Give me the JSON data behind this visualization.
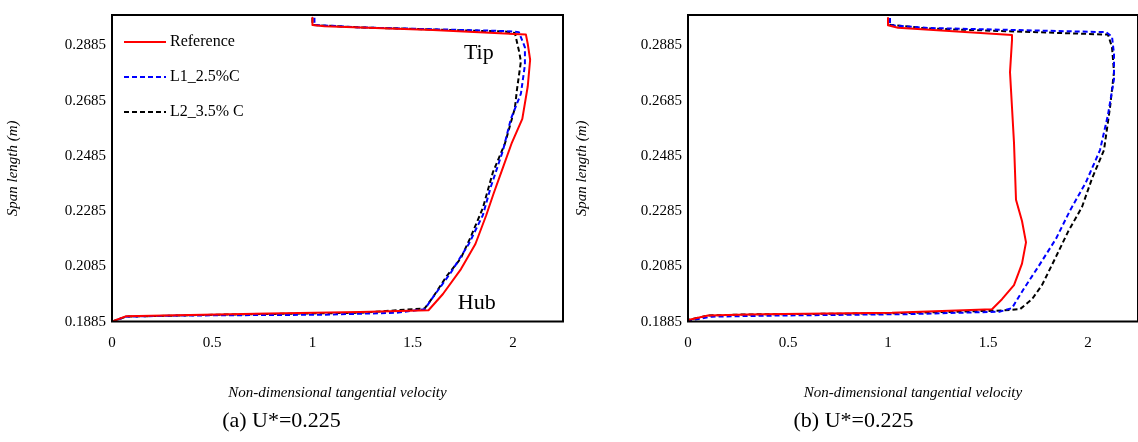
{
  "chart_data": [
    {
      "type": "line",
      "title": "(a) U*=0.225",
      "xlabel": "Non-dimensional tangential velocity",
      "ylabel": "Span length (m)",
      "xlim": [
        0,
        2.25
      ],
      "ylim": [
        0.1885,
        0.2995
      ],
      "xticks": [
        0,
        0.5,
        1,
        1.5,
        2
      ],
      "yticks": [
        0.1885,
        0.2085,
        0.2285,
        0.2485,
        0.2685,
        0.2885
      ],
      "legend": "top left",
      "annotations": [
        "Tip",
        "Hub"
      ],
      "series": [
        {
          "name": "Reference",
          "color": "#ff0000",
          "line_style": "solid",
          "x": [
            1.0,
            1.0,
            1.06,
            1.6,
            2.065,
            2.074,
            2.086,
            2.074,
            2.047,
            1.993,
            1.948,
            1.903,
            1.867,
            1.813,
            1.741,
            1.651,
            1.579,
            1.237,
            0.518,
            0.068,
            0
          ],
          "values": [
            0.2985,
            0.2959,
            0.2954,
            0.2941,
            0.2924,
            0.2891,
            0.2833,
            0.2736,
            0.2619,
            0.2529,
            0.2438,
            0.2347,
            0.227,
            0.2166,
            0.2075,
            0.1985,
            0.1926,
            0.192,
            0.1911,
            0.1904,
            0.1885
          ]
        },
        {
          "name": "L1_2.5%C",
          "color": "#0000ff",
          "line_style": "dashed",
          "x": [
            1.01,
            1.01,
            1.24,
            1.96,
            2.03,
            2.06,
            2.06,
            2.04,
            1.99,
            1.95,
            1.89,
            1.85,
            1.78,
            1.69,
            1.6,
            1.56,
            1.42,
            1.06,
            0.34,
            0.07,
            0
          ],
          "values": [
            0.2985,
            0.2959,
            0.295,
            0.2937,
            0.2933,
            0.2878,
            0.2814,
            0.271,
            0.2619,
            0.2503,
            0.2373,
            0.227,
            0.2166,
            0.2062,
            0.1972,
            0.193,
            0.1917,
            0.191,
            0.1907,
            0.1903,
            0.1885
          ]
        },
        {
          "name": "L2_3.5% C",
          "color": "#000000",
          "line_style": "dashed",
          "x": [
            1.0,
            1.0,
            1.24,
            1.96,
            2.01,
            2.03,
            2.04,
            2.02,
            2.01,
            1.96,
            1.9,
            1.85,
            1.79,
            1.74,
            1.67,
            1.6,
            1.56,
            1.24,
            0.52,
            0.07,
            0
          ],
          "values": [
            0.2985,
            0.2959,
            0.295,
            0.2935,
            0.293,
            0.2866,
            0.2827,
            0.2723,
            0.2658,
            0.2529,
            0.2425,
            0.2296,
            0.2192,
            0.2114,
            0.205,
            0.1972,
            0.1933,
            0.1917,
            0.191,
            0.1903,
            0.1885
          ]
        }
      ]
    },
    {
      "type": "line",
      "title": "(b) U*=0.225",
      "xlabel": "Non-dimensional tangential velocity",
      "ylabel": "Span length (m)",
      "xlim": [
        0,
        2.25
      ],
      "ylim": [
        0.1885,
        0.2995
      ],
      "xticks": [
        0,
        0.5,
        1,
        1.5,
        2
      ],
      "yticks": [
        0.1885,
        0.2085,
        0.2285,
        0.2485,
        0.2685,
        0.2885
      ],
      "series": [
        {
          "color": "#ff0000",
          "line_style": "solid",
          "x": [
            1.0,
            1.0,
            1.05,
            1.62,
            1.62,
            1.61,
            1.62,
            1.63,
            1.64,
            1.67,
            1.69,
            1.67,
            1.63,
            1.57,
            1.52,
            1.02,
            0.3,
            0.1,
            0
          ],
          "values": [
            0.2984,
            0.2958,
            0.2949,
            0.2923,
            0.2904,
            0.2788,
            0.266,
            0.2532,
            0.2326,
            0.2249,
            0.2172,
            0.2095,
            0.2017,
            0.1966,
            0.193,
            0.1917,
            0.1911,
            0.1907,
            0.1891
          ]
        },
        {
          "color": "#0000ff",
          "line_style": "dashed",
          "x": [
            1.01,
            1.01,
            1.2,
            2.09,
            2.12,
            2.13,
            2.13,
            2.1,
            2.06,
            1.99,
            1.91,
            1.84,
            1.75,
            1.68,
            1.62,
            1.56,
            1.1,
            0.45,
            0.12,
            0
          ],
          "values": [
            0.2984,
            0.2958,
            0.2948,
            0.2933,
            0.2917,
            0.2853,
            0.2763,
            0.2634,
            0.2506,
            0.239,
            0.2287,
            0.2185,
            0.2082,
            0.2005,
            0.1934,
            0.1921,
            0.1912,
            0.1907,
            0.1903,
            0.1888
          ]
        },
        {
          "color": "#000000",
          "line_style": "dashed",
          "x": [
            1.0,
            1.0,
            1.2,
            2.1,
            2.12,
            2.13,
            2.11,
            2.08,
            2.02,
            1.97,
            1.9,
            1.84,
            1.77,
            1.72,
            1.66,
            1.57,
            1.02,
            0.3,
            0.1,
            0
          ],
          "values": [
            0.2984,
            0.296,
            0.2946,
            0.2924,
            0.2879,
            0.2789,
            0.266,
            0.2506,
            0.2403,
            0.23,
            0.221,
            0.212,
            0.2017,
            0.1966,
            0.193,
            0.1925,
            0.1915,
            0.1911,
            0.1907,
            0.1891
          ]
        }
      ]
    }
  ]
}
